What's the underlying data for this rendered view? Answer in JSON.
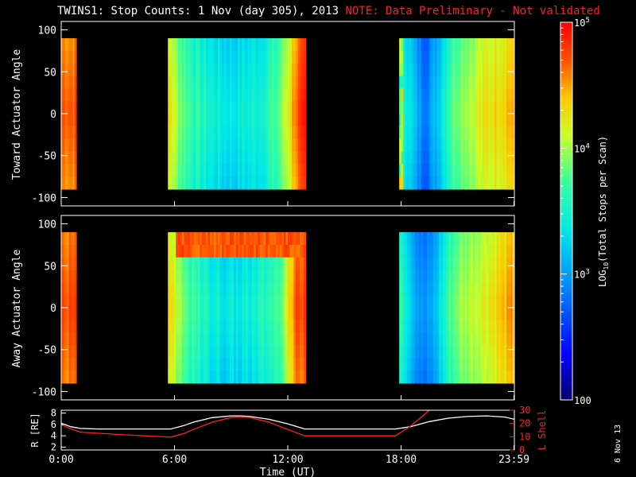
{
  "title": {
    "main": "TWINS1: Stop Counts:  1 Nov (day 305), 2013",
    "note": "NOTE: Data Preliminary - Not validated"
  },
  "datestamp": "6 Nov 13",
  "colorbar": {
    "label": "LOG10(Total Stops per Scan)",
    "ticks": [
      "100",
      "10^3",
      "10^4",
      "10^5"
    ],
    "range": [
      100,
      100000
    ],
    "scale": "log",
    "colormap": "rainbow"
  },
  "chart_data": [
    {
      "type": "heatmap",
      "name": "toward",
      "ylabel": "Toward Actuator Angle",
      "ylim": [
        -110,
        110
      ],
      "yticks": [
        "100",
        "50",
        "0",
        "-50",
        "-100"
      ],
      "angle_range": [
        -90,
        90
      ],
      "xlim": [
        0,
        24
      ],
      "data_segments_hours": [
        [
          0.0,
          0.8
        ],
        [
          5.65,
          12.95
        ],
        [
          17.9,
          24.0
        ]
      ],
      "colormap": "rainbow",
      "scale": "log"
    },
    {
      "type": "heatmap",
      "name": "away",
      "ylabel": "Away Actuator Angle",
      "ylim": [
        -110,
        110
      ],
      "yticks": [
        "100",
        "50",
        "0",
        "-50",
        "-100"
      ],
      "angle_range": [
        -90,
        90
      ],
      "xlim": [
        0,
        24
      ],
      "data_segments_hours": [
        [
          0.0,
          0.8
        ],
        [
          5.65,
          12.95
        ],
        [
          17.9,
          24.0
        ]
      ],
      "colormap": "rainbow",
      "scale": "log"
    },
    {
      "type": "line",
      "name": "orbit",
      "ylabel": "R [RE]",
      "ylabel_right": "L Shell",
      "xlabel": "Time (UT)",
      "xticks": [
        "0:00",
        "6:00",
        "12:00",
        "18:00",
        "23:59"
      ],
      "yticks_left": [
        "8",
        "6",
        "4",
        "2"
      ],
      "yticks_right": [
        "30",
        "20",
        "10",
        "0"
      ],
      "ylim_left": [
        1.5,
        8.5
      ],
      "ylim_right": [
        0,
        30
      ],
      "xlim": [
        0,
        24
      ],
      "series": [
        {
          "color": "#ffffff",
          "axis": "left",
          "x": [
            0,
            0.5,
            1,
            2,
            3,
            4,
            5,
            5.8,
            6.5,
            7,
            8,
            9,
            9.5,
            10,
            11,
            12,
            12.9,
            13.5,
            15,
            16.5,
            17.7,
            18.5,
            19.5,
            20.5,
            21.5,
            22.5,
            23.5,
            24
          ],
          "y": [
            6.2,
            5.6,
            5.3,
            5.2,
            5.2,
            5.2,
            5.2,
            5.2,
            5.8,
            6.4,
            7.2,
            7.5,
            7.5,
            7.4,
            6.9,
            6.1,
            5.2,
            5.2,
            5.2,
            5.2,
            5.2,
            5.6,
            6.5,
            7.1,
            7.4,
            7.5,
            7.3,
            6.9
          ]
        },
        {
          "color": "#ff2020",
          "axis": "right",
          "x": [
            0,
            0.5,
            1,
            3,
            5.8,
            6.5,
            7,
            8,
            9,
            9.5,
            10,
            11,
            12,
            12.9,
            15,
            17.7,
            18.5,
            19,
            19.5,
            20,
            24
          ],
          "y": [
            19,
            16,
            13.5,
            11.7,
            9.7,
            12.5,
            15.5,
            21,
            24.5,
            25,
            24.5,
            21,
            15.5,
            10.7,
            10.7,
            10.7,
            18,
            24,
            30,
            35,
            35
          ]
        }
      ]
    }
  ]
}
